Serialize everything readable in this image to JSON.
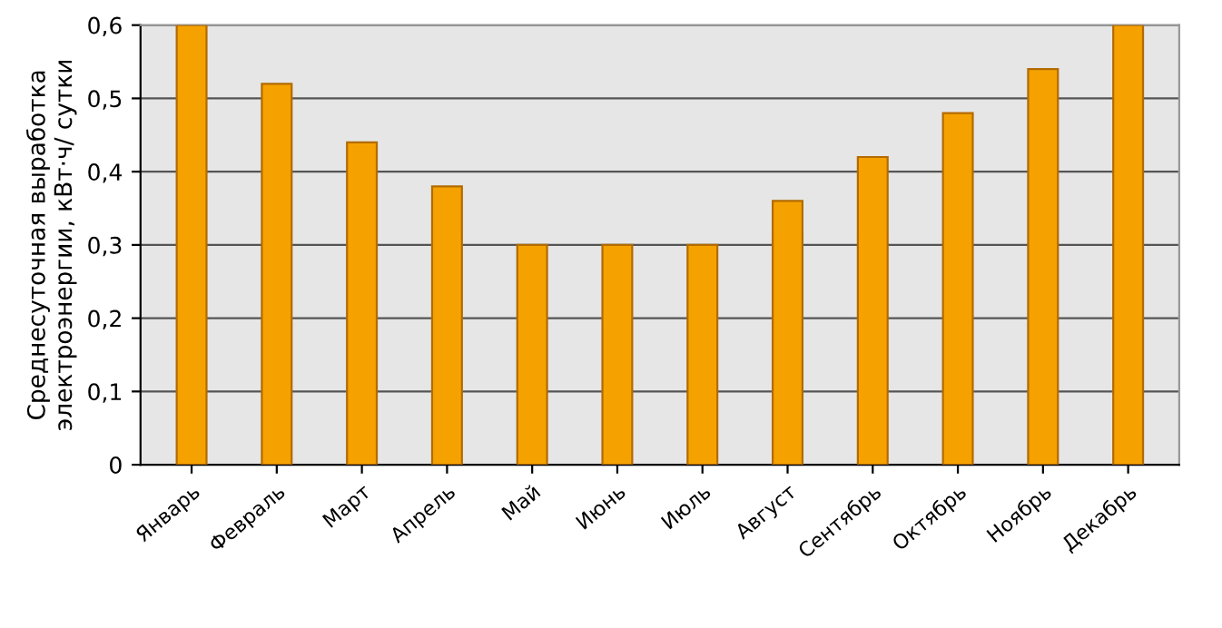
{
  "chart_data": {
    "type": "bar",
    "ylabel": "Среднесуточная выработка\nэлектроэнергии, кВт·ч/ сутки",
    "categories": [
      "Январь",
      "Февраль",
      "Март",
      "Апрель",
      "Май",
      "Июнь",
      "Июль",
      "Август",
      "Сентябрь",
      "Октябрь",
      "Ноябрь",
      "Декабрь"
    ],
    "values": [
      0.6,
      0.52,
      0.44,
      0.38,
      0.3,
      0.3,
      0.3,
      0.36,
      0.42,
      0.48,
      0.54,
      0.6
    ],
    "color": "#f5a200",
    "ylim": [
      0,
      0.6
    ],
    "yticks": [
      {
        "value": 0,
        "label": "0"
      },
      {
        "value": 0.1,
        "label": "0,1"
      },
      {
        "value": 0.2,
        "label": "0,2"
      },
      {
        "value": 0.3,
        "label": "0,3"
      },
      {
        "value": 0.4,
        "label": "0,4"
      },
      {
        "value": 0.5,
        "label": "0,5"
      },
      {
        "value": 0.6,
        "label": "0,6"
      }
    ],
    "grid": "y"
  }
}
